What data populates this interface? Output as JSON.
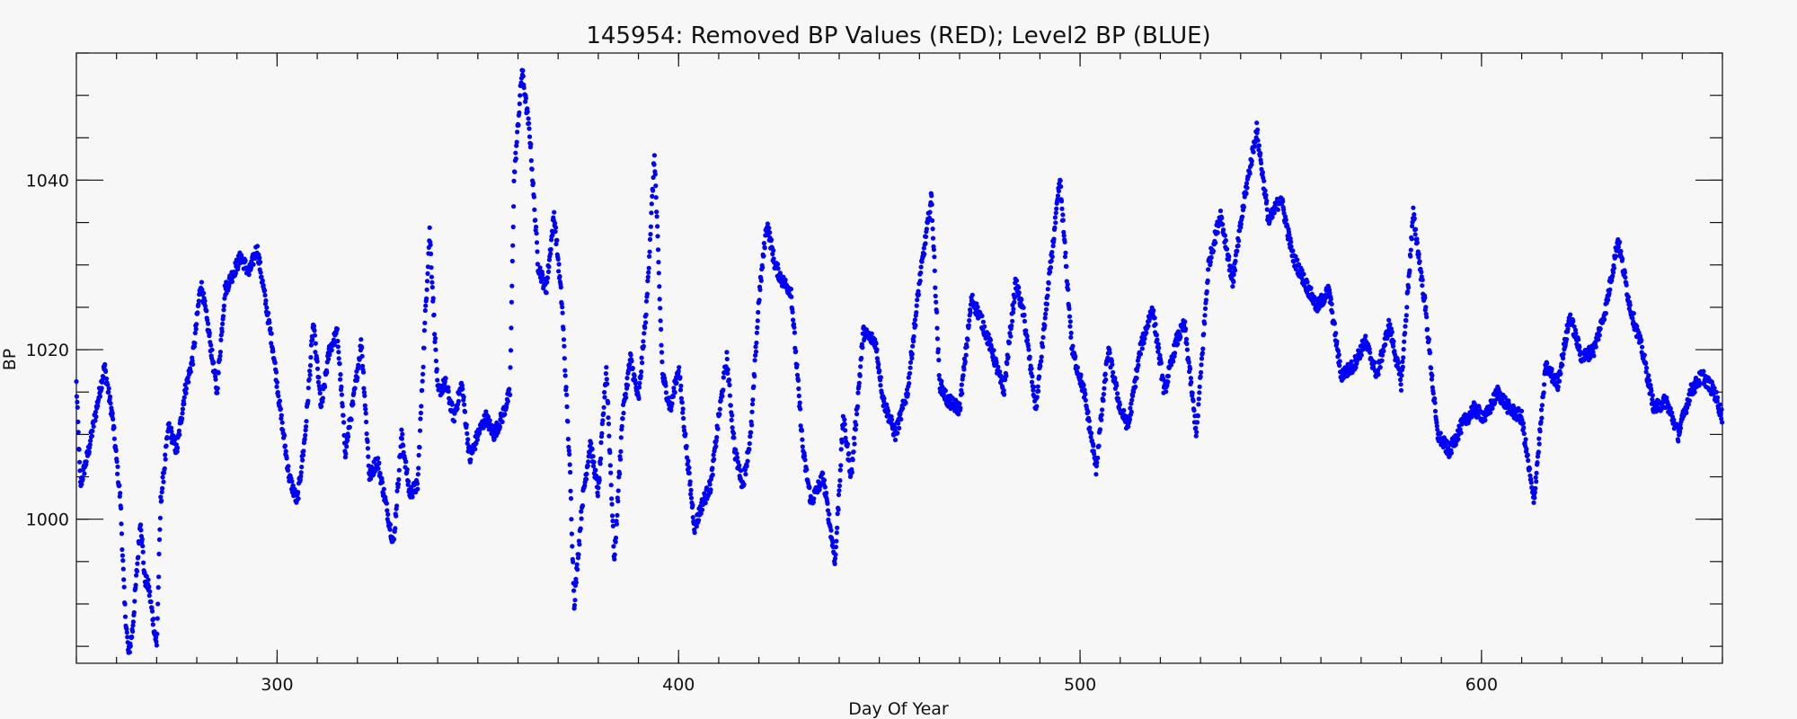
{
  "chart_data": {
    "type": "scatter",
    "title": "145954: Removed BP Values (RED); Level2 BP (BLUE)",
    "xlabel": "Day Of Year",
    "ylabel": "BP",
    "xlim": [
      250,
      660
    ],
    "ylim": [
      983,
      1055
    ],
    "x_major_ticks": [
      300,
      400,
      500,
      600
    ],
    "x_tick_labels": [
      "300",
      "400",
      "500",
      "600"
    ],
    "x_minor_step": 10,
    "y_major_ticks": [
      1000,
      1020,
      1040
    ],
    "y_tick_labels": [
      "1000",
      "1020",
      "1040"
    ],
    "y_minor_step": 5,
    "grid": false,
    "series": [
      {
        "color": "#0000ff",
        "marker": "dot",
        "anchor_points": [
          [
            250,
            1016
          ],
          [
            251,
            1004
          ],
          [
            253,
            1008
          ],
          [
            255,
            1013
          ],
          [
            257,
            1018
          ],
          [
            259,
            1012
          ],
          [
            261,
            1002
          ],
          [
            262,
            990
          ],
          [
            263,
            984
          ],
          [
            264,
            987
          ],
          [
            266,
            1000
          ],
          [
            267,
            993
          ],
          [
            268,
            992
          ],
          [
            270,
            985
          ],
          [
            271,
            1002
          ],
          [
            273,
            1011
          ],
          [
            275,
            1008
          ],
          [
            277,
            1015
          ],
          [
            279,
            1019
          ],
          [
            281,
            1028
          ],
          [
            283,
            1022
          ],
          [
            285,
            1015
          ],
          [
            287,
            1027
          ],
          [
            289,
            1029
          ],
          [
            291,
            1031
          ],
          [
            293,
            1029
          ],
          [
            295,
            1032
          ],
          [
            297,
            1026
          ],
          [
            299,
            1020
          ],
          [
            301,
            1012
          ],
          [
            303,
            1005
          ],
          [
            305,
            1002
          ],
          [
            307,
            1010
          ],
          [
            309,
            1023
          ],
          [
            311,
            1013
          ],
          [
            313,
            1020
          ],
          [
            315,
            1022
          ],
          [
            317,
            1008
          ],
          [
            319,
            1014
          ],
          [
            321,
            1021
          ],
          [
            323,
            1005
          ],
          [
            325,
            1007
          ],
          [
            327,
            1002
          ],
          [
            329,
            997
          ],
          [
            331,
            1010
          ],
          [
            333,
            1003
          ],
          [
            335,
            1004
          ],
          [
            337,
            1025
          ],
          [
            338,
            1034
          ],
          [
            340,
            1015
          ],
          [
            342,
            1016
          ],
          [
            344,
            1012
          ],
          [
            346,
            1016
          ],
          [
            348,
            1007
          ],
          [
            350,
            1010
          ],
          [
            352,
            1012
          ],
          [
            354,
            1010
          ],
          [
            356,
            1012
          ],
          [
            358,
            1015
          ],
          [
            359,
            1040
          ],
          [
            361,
            1053
          ],
          [
            363,
            1045
          ],
          [
            365,
            1030
          ],
          [
            367,
            1027
          ],
          [
            369,
            1036
          ],
          [
            371,
            1025
          ],
          [
            373,
            1005
          ],
          [
            374,
            990
          ],
          [
            376,
            1002
          ],
          [
            378,
            1009
          ],
          [
            380,
            1003
          ],
          [
            382,
            1018
          ],
          [
            384,
            995
          ],
          [
            386,
            1012
          ],
          [
            388,
            1019
          ],
          [
            390,
            1014
          ],
          [
            392,
            1025
          ],
          [
            394,
            1043
          ],
          [
            396,
            1017
          ],
          [
            398,
            1013
          ],
          [
            400,
            1018
          ],
          [
            402,
            1008
          ],
          [
            404,
            999
          ],
          [
            406,
            1002
          ],
          [
            408,
            1004
          ],
          [
            410,
            1012
          ],
          [
            412,
            1019
          ],
          [
            414,
            1008
          ],
          [
            416,
            1004
          ],
          [
            418,
            1010
          ],
          [
            420,
            1026
          ],
          [
            422,
            1035
          ],
          [
            424,
            1030
          ],
          [
            426,
            1028
          ],
          [
            428,
            1027
          ],
          [
            431,
            1008
          ],
          [
            433,
            1002
          ],
          [
            436,
            1005
          ],
          [
            439,
            995
          ],
          [
            441,
            1012
          ],
          [
            443,
            1005
          ],
          [
            446,
            1022
          ],
          [
            449,
            1021
          ],
          [
            451,
            1014
          ],
          [
            454,
            1010
          ],
          [
            457,
            1015
          ],
          [
            460,
            1028
          ],
          [
            463,
            1038
          ],
          [
            465,
            1016
          ],
          [
            467,
            1014
          ],
          [
            470,
            1013
          ],
          [
            473,
            1026
          ],
          [
            475,
            1024
          ],
          [
            478,
            1020
          ],
          [
            481,
            1015
          ],
          [
            484,
            1028
          ],
          [
            486,
            1024
          ],
          [
            489,
            1013
          ],
          [
            492,
            1027
          ],
          [
            495,
            1040
          ],
          [
            498,
            1020
          ],
          [
            501,
            1015
          ],
          [
            504,
            1006
          ],
          [
            507,
            1020
          ],
          [
            510,
            1013
          ],
          [
            512,
            1011
          ],
          [
            515,
            1020
          ],
          [
            518,
            1025
          ],
          [
            521,
            1015
          ],
          [
            524,
            1021
          ],
          [
            526,
            1023
          ],
          [
            529,
            1010
          ],
          [
            532,
            1030
          ],
          [
            535,
            1036
          ],
          [
            538,
            1028
          ],
          [
            541,
            1038
          ],
          [
            544,
            1046
          ],
          [
            547,
            1035
          ],
          [
            550,
            1038
          ],
          [
            553,
            1031
          ],
          [
            556,
            1028
          ],
          [
            559,
            1025
          ],
          [
            562,
            1027
          ],
          [
            565,
            1017
          ],
          [
            568,
            1018
          ],
          [
            571,
            1021
          ],
          [
            574,
            1017
          ],
          [
            577,
            1023
          ],
          [
            580,
            1016
          ],
          [
            583,
            1036
          ],
          [
            586,
            1025
          ],
          [
            589,
            1010
          ],
          [
            592,
            1008
          ],
          [
            595,
            1011
          ],
          [
            598,
            1013
          ],
          [
            601,
            1012
          ],
          [
            604,
            1015
          ],
          [
            607,
            1013
          ],
          [
            610,
            1012
          ],
          [
            613,
            1002
          ],
          [
            616,
            1018
          ],
          [
            619,
            1016
          ],
          [
            622,
            1024
          ],
          [
            625,
            1019
          ],
          [
            628,
            1020
          ],
          [
            631,
            1025
          ],
          [
            634,
            1033
          ],
          [
            637,
            1025
          ],
          [
            640,
            1020
          ],
          [
            643,
            1013
          ],
          [
            646,
            1014
          ],
          [
            649,
            1010
          ],
          [
            652,
            1015
          ],
          [
            655,
            1017
          ],
          [
            658,
            1015
          ],
          [
            660,
            1012
          ]
        ]
      }
    ]
  }
}
